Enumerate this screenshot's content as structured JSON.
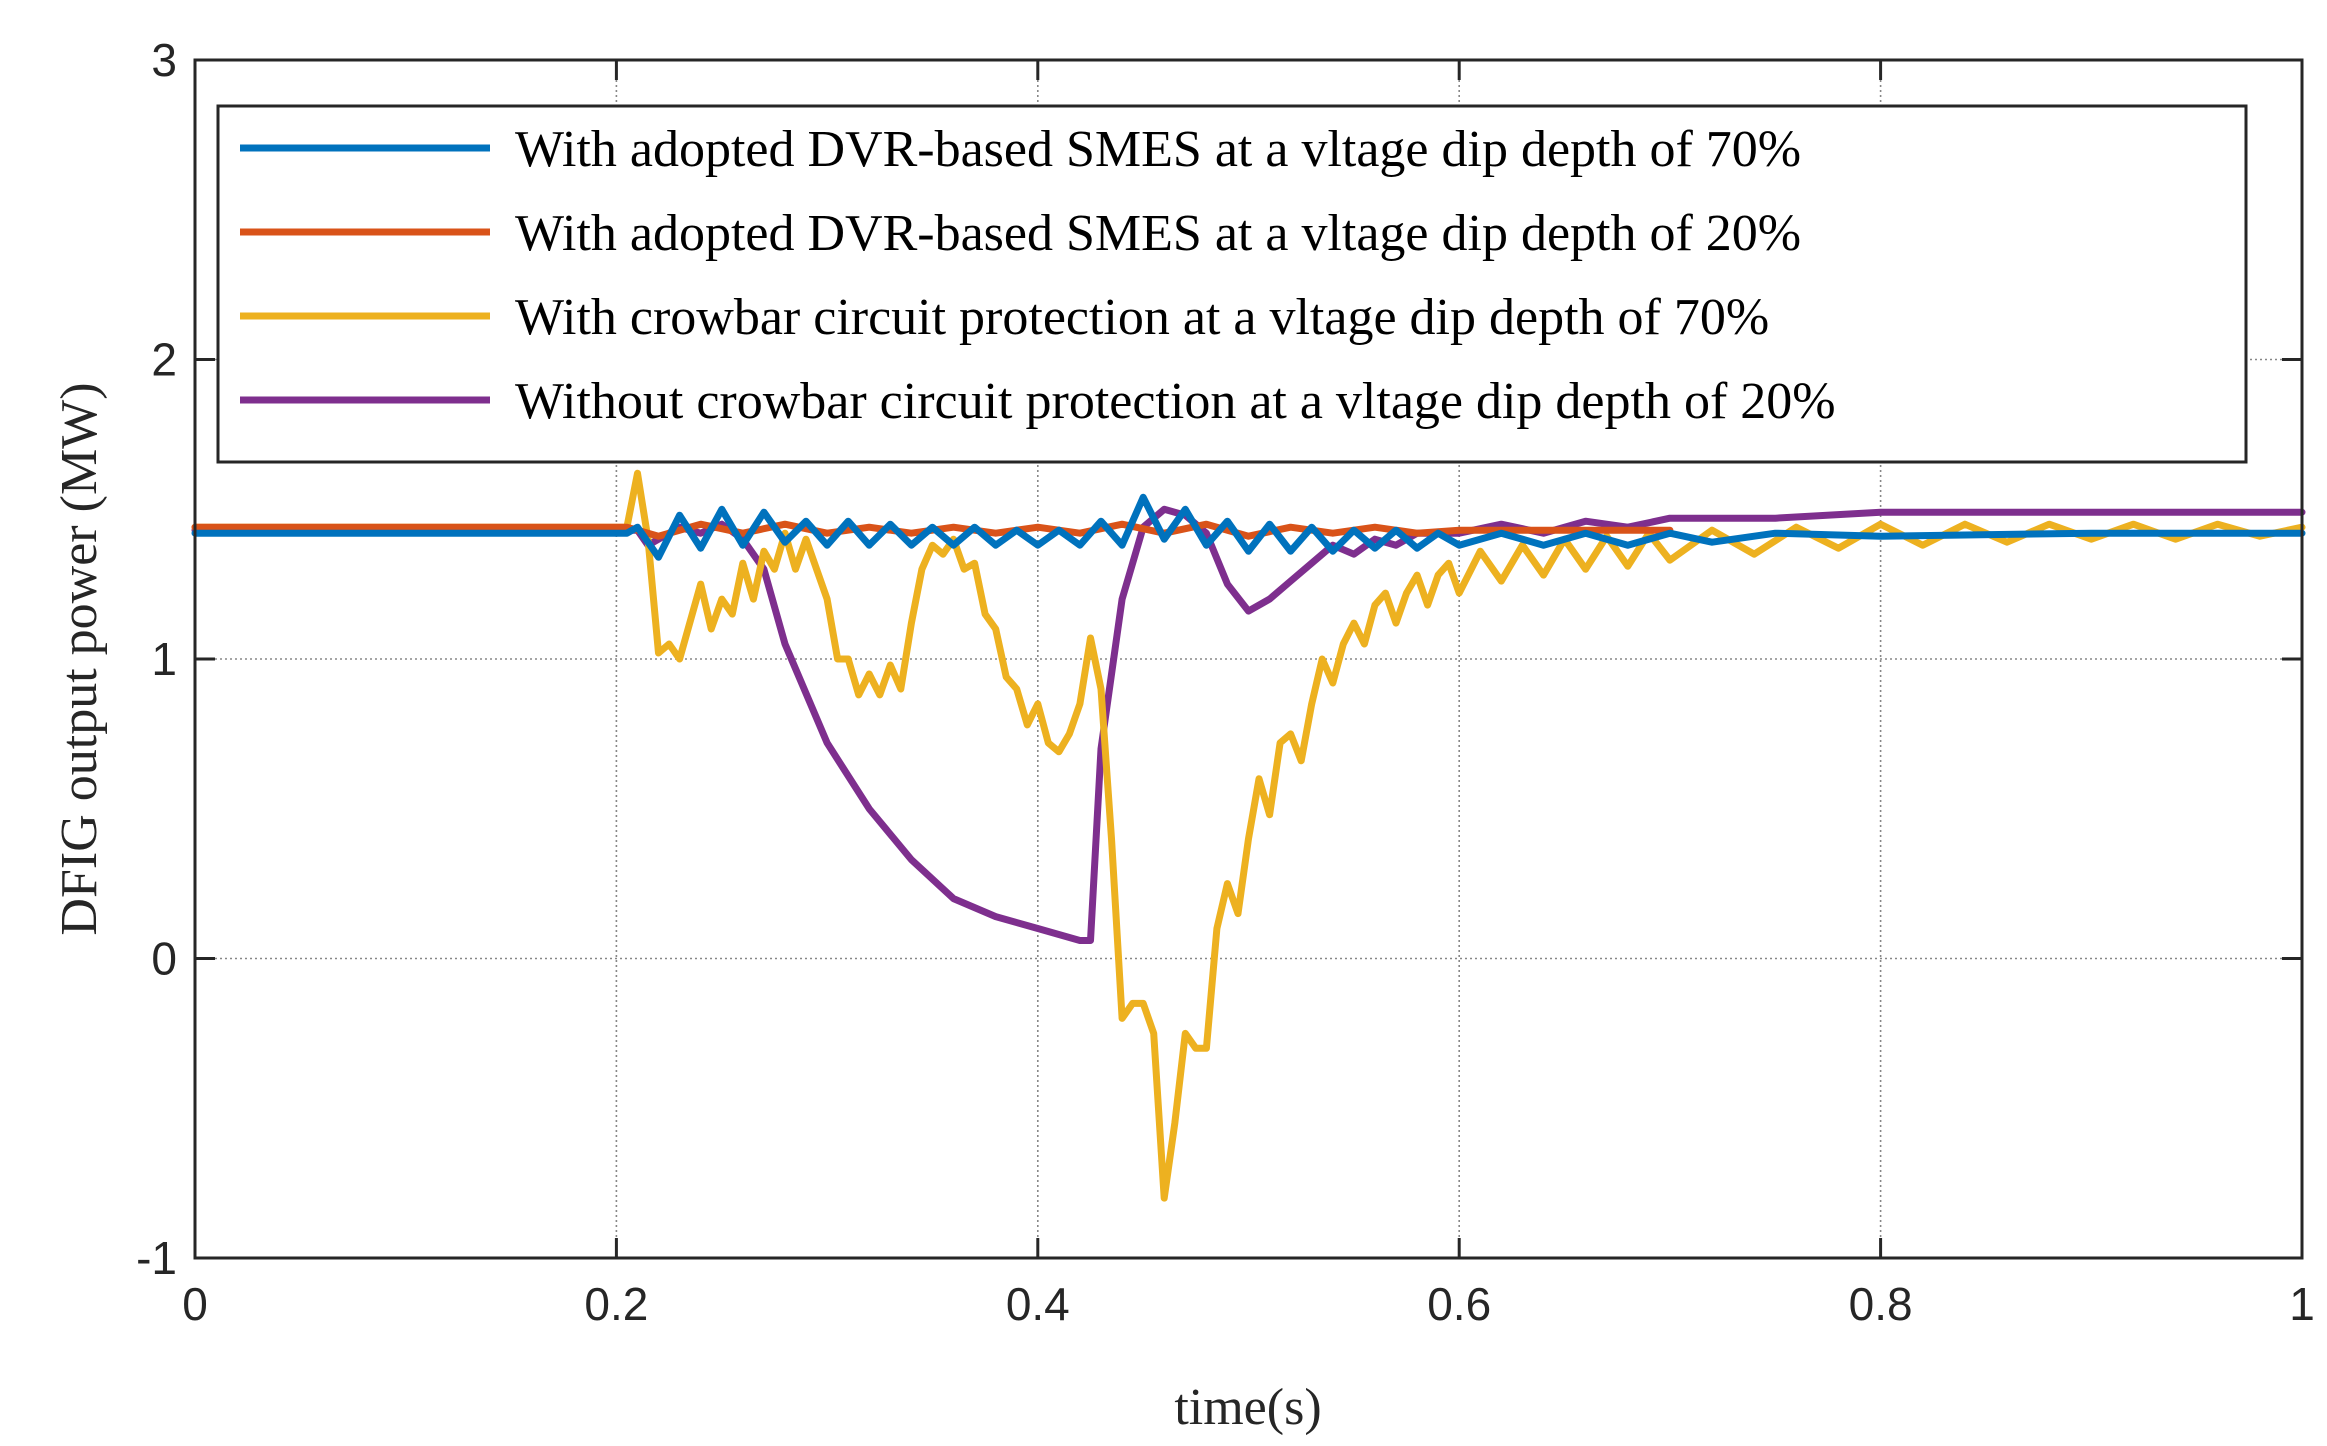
{
  "chart_data": {
    "type": "line",
    "title": "",
    "xlabel": "time(s)",
    "ylabel": "DFIG output power (MW)",
    "xlim": [
      0,
      1
    ],
    "ylim": [
      -1,
      3
    ],
    "xticks": [
      0,
      0.2,
      0.4,
      0.6,
      0.8,
      1
    ],
    "xtick_labels": [
      "0",
      "0.2",
      "0.4",
      "0.6",
      "0.8",
      "1"
    ],
    "yticks": [
      -1,
      0,
      1,
      2,
      3
    ],
    "ytick_labels": [
      "-1",
      "0",
      "1",
      "2",
      "3"
    ],
    "grid": true,
    "legend_position": "top",
    "series": [
      {
        "name": "With adopted DVR-based SMES at a vltage dip depth of 70%",
        "color": "#0072BD",
        "points": [
          [
            0,
            1.42
          ],
          [
            0.205,
            1.42
          ],
          [
            0.21,
            1.44
          ],
          [
            0.22,
            1.34
          ],
          [
            0.23,
            1.48
          ],
          [
            0.24,
            1.37
          ],
          [
            0.25,
            1.5
          ],
          [
            0.26,
            1.38
          ],
          [
            0.27,
            1.49
          ],
          [
            0.28,
            1.39
          ],
          [
            0.29,
            1.46
          ],
          [
            0.3,
            1.38
          ],
          [
            0.31,
            1.46
          ],
          [
            0.32,
            1.38
          ],
          [
            0.33,
            1.45
          ],
          [
            0.34,
            1.38
          ],
          [
            0.35,
            1.44
          ],
          [
            0.36,
            1.38
          ],
          [
            0.37,
            1.44
          ],
          [
            0.38,
            1.38
          ],
          [
            0.39,
            1.43
          ],
          [
            0.4,
            1.38
          ],
          [
            0.41,
            1.43
          ],
          [
            0.42,
            1.38
          ],
          [
            0.43,
            1.46
          ],
          [
            0.44,
            1.38
          ],
          [
            0.45,
            1.54
          ],
          [
            0.46,
            1.4
          ],
          [
            0.47,
            1.5
          ],
          [
            0.48,
            1.38
          ],
          [
            0.49,
            1.46
          ],
          [
            0.5,
            1.36
          ],
          [
            0.51,
            1.45
          ],
          [
            0.52,
            1.36
          ],
          [
            0.53,
            1.44
          ],
          [
            0.54,
            1.36
          ],
          [
            0.55,
            1.43
          ],
          [
            0.56,
            1.37
          ],
          [
            0.57,
            1.43
          ],
          [
            0.58,
            1.37
          ],
          [
            0.59,
            1.42
          ],
          [
            0.6,
            1.38
          ],
          [
            0.62,
            1.42
          ],
          [
            0.64,
            1.38
          ],
          [
            0.66,
            1.42
          ],
          [
            0.68,
            1.38
          ],
          [
            0.7,
            1.42
          ],
          [
            0.72,
            1.39
          ],
          [
            0.75,
            1.42
          ],
          [
            0.8,
            1.41
          ],
          [
            0.9,
            1.42
          ],
          [
            1,
            1.42
          ]
        ]
      },
      {
        "name": "With adopted DVR-based SMES at a vltage dip depth of 20%",
        "color": "#D95319",
        "points": [
          [
            0,
            1.44
          ],
          [
            0.205,
            1.44
          ],
          [
            0.22,
            1.41
          ],
          [
            0.24,
            1.45
          ],
          [
            0.26,
            1.42
          ],
          [
            0.28,
            1.45
          ],
          [
            0.3,
            1.42
          ],
          [
            0.32,
            1.44
          ],
          [
            0.34,
            1.42
          ],
          [
            0.36,
            1.44
          ],
          [
            0.38,
            1.42
          ],
          [
            0.4,
            1.44
          ],
          [
            0.42,
            1.42
          ],
          [
            0.44,
            1.45
          ],
          [
            0.46,
            1.42
          ],
          [
            0.48,
            1.45
          ],
          [
            0.5,
            1.41
          ],
          [
            0.52,
            1.44
          ],
          [
            0.54,
            1.42
          ],
          [
            0.56,
            1.44
          ],
          [
            0.58,
            1.42
          ],
          [
            0.6,
            1.43
          ],
          [
            0.64,
            1.43
          ],
          [
            0.7,
            1.43
          ]
        ]
      },
      {
        "name": "With crowbar circuit protection at a vltage dip depth of 70%",
        "color": "#EDB120",
        "points": [
          [
            0,
            1.44
          ],
          [
            0.205,
            1.44
          ],
          [
            0.21,
            1.62
          ],
          [
            0.215,
            1.4
          ],
          [
            0.22,
            1.02
          ],
          [
            0.225,
            1.05
          ],
          [
            0.23,
            1.0
          ],
          [
            0.24,
            1.25
          ],
          [
            0.245,
            1.1
          ],
          [
            0.25,
            1.2
          ],
          [
            0.255,
            1.15
          ],
          [
            0.26,
            1.32
          ],
          [
            0.265,
            1.2
          ],
          [
            0.27,
            1.36
          ],
          [
            0.275,
            1.3
          ],
          [
            0.28,
            1.42
          ],
          [
            0.285,
            1.3
          ],
          [
            0.29,
            1.4
          ],
          [
            0.3,
            1.2
          ],
          [
            0.305,
            1.0
          ],
          [
            0.31,
            1.0
          ],
          [
            0.315,
            0.88
          ],
          [
            0.32,
            0.95
          ],
          [
            0.325,
            0.88
          ],
          [
            0.33,
            0.98
          ],
          [
            0.335,
            0.9
          ],
          [
            0.34,
            1.12
          ],
          [
            0.345,
            1.3
          ],
          [
            0.35,
            1.38
          ],
          [
            0.355,
            1.35
          ],
          [
            0.36,
            1.4
          ],
          [
            0.365,
            1.3
          ],
          [
            0.37,
            1.32
          ],
          [
            0.375,
            1.15
          ],
          [
            0.38,
            1.1
          ],
          [
            0.385,
            0.94
          ],
          [
            0.39,
            0.9
          ],
          [
            0.395,
            0.78
          ],
          [
            0.4,
            0.85
          ],
          [
            0.405,
            0.72
          ],
          [
            0.41,
            0.69
          ],
          [
            0.415,
            0.75
          ],
          [
            0.42,
            0.85
          ],
          [
            0.425,
            1.07
          ],
          [
            0.43,
            0.9
          ],
          [
            0.435,
            0.4
          ],
          [
            0.44,
            -0.2
          ],
          [
            0.445,
            -0.15
          ],
          [
            0.45,
            -0.15
          ],
          [
            0.455,
            -0.25
          ],
          [
            0.46,
            -0.8
          ],
          [
            0.465,
            -0.55
          ],
          [
            0.47,
            -0.25
          ],
          [
            0.475,
            -0.3
          ],
          [
            0.48,
            -0.3
          ],
          [
            0.485,
            0.1
          ],
          [
            0.49,
            0.25
          ],
          [
            0.495,
            0.15
          ],
          [
            0.5,
            0.4
          ],
          [
            0.505,
            0.6
          ],
          [
            0.51,
            0.48
          ],
          [
            0.515,
            0.72
          ],
          [
            0.52,
            0.75
          ],
          [
            0.525,
            0.66
          ],
          [
            0.53,
            0.85
          ],
          [
            0.535,
            1.0
          ],
          [
            0.54,
            0.92
          ],
          [
            0.545,
            1.05
          ],
          [
            0.55,
            1.12
          ],
          [
            0.555,
            1.05
          ],
          [
            0.56,
            1.18
          ],
          [
            0.565,
            1.22
          ],
          [
            0.57,
            1.12
          ],
          [
            0.575,
            1.22
          ],
          [
            0.58,
            1.28
          ],
          [
            0.585,
            1.18
          ],
          [
            0.59,
            1.28
          ],
          [
            0.595,
            1.32
          ],
          [
            0.6,
            1.22
          ],
          [
            0.61,
            1.36
          ],
          [
            0.62,
            1.26
          ],
          [
            0.63,
            1.38
          ],
          [
            0.64,
            1.28
          ],
          [
            0.65,
            1.4
          ],
          [
            0.66,
            1.3
          ],
          [
            0.67,
            1.41
          ],
          [
            0.68,
            1.31
          ],
          [
            0.69,
            1.42
          ],
          [
            0.7,
            1.33
          ],
          [
            0.72,
            1.43
          ],
          [
            0.74,
            1.35
          ],
          [
            0.76,
            1.44
          ],
          [
            0.78,
            1.37
          ],
          [
            0.8,
            1.45
          ],
          [
            0.82,
            1.38
          ],
          [
            0.84,
            1.45
          ],
          [
            0.86,
            1.39
          ],
          [
            0.88,
            1.45
          ],
          [
            0.9,
            1.4
          ],
          [
            0.92,
            1.45
          ],
          [
            0.94,
            1.4
          ],
          [
            0.96,
            1.45
          ],
          [
            0.98,
            1.41
          ],
          [
            1,
            1.44
          ]
        ]
      },
      {
        "name": "Without crowbar circuit protection at a vltage dip depth of 20%",
        "color": "#7E2F8E",
        "points": [
          [
            0,
            1.43
          ],
          [
            0.21,
            1.43
          ],
          [
            0.215,
            1.38
          ],
          [
            0.22,
            1.4
          ],
          [
            0.23,
            1.44
          ],
          [
            0.24,
            1.42
          ],
          [
            0.25,
            1.45
          ],
          [
            0.26,
            1.4
          ],
          [
            0.27,
            1.3
          ],
          [
            0.28,
            1.05
          ],
          [
            0.3,
            0.72
          ],
          [
            0.32,
            0.5
          ],
          [
            0.34,
            0.33
          ],
          [
            0.36,
            0.2
          ],
          [
            0.38,
            0.14
          ],
          [
            0.4,
            0.1
          ],
          [
            0.42,
            0.06
          ],
          [
            0.425,
            0.06
          ],
          [
            0.43,
            0.7
          ],
          [
            0.44,
            1.2
          ],
          [
            0.45,
            1.44
          ],
          [
            0.46,
            1.5
          ],
          [
            0.47,
            1.48
          ],
          [
            0.48,
            1.42
          ],
          [
            0.49,
            1.25
          ],
          [
            0.5,
            1.16
          ],
          [
            0.51,
            1.2
          ],
          [
            0.52,
            1.26
          ],
          [
            0.53,
            1.32
          ],
          [
            0.54,
            1.38
          ],
          [
            0.55,
            1.35
          ],
          [
            0.56,
            1.4
          ],
          [
            0.57,
            1.38
          ],
          [
            0.58,
            1.42
          ],
          [
            0.6,
            1.42
          ],
          [
            0.62,
            1.45
          ],
          [
            0.64,
            1.42
          ],
          [
            0.66,
            1.46
          ],
          [
            0.68,
            1.44
          ],
          [
            0.7,
            1.47
          ],
          [
            0.75,
            1.47
          ],
          [
            0.8,
            1.49
          ],
          [
            0.9,
            1.49
          ],
          [
            1,
            1.49
          ]
        ]
      }
    ]
  }
}
